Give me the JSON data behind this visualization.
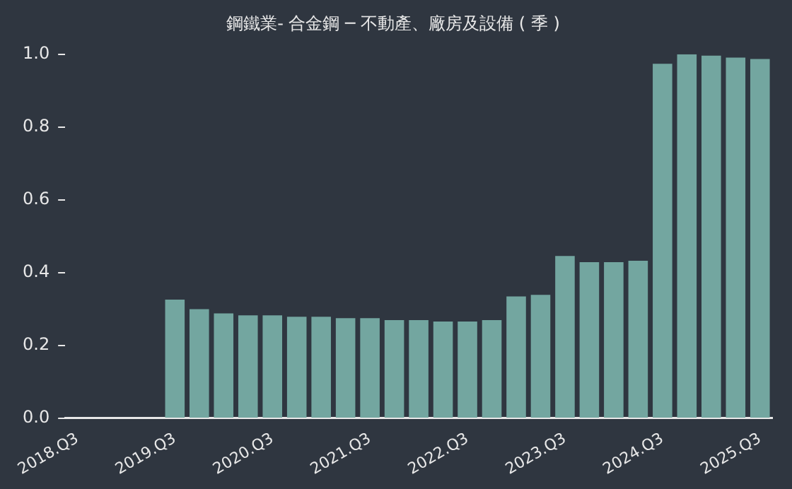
{
  "chart_data": {
    "type": "bar",
    "title": "鋼鐵業- 合金鋼 ─ 不動產、廠房及設備 ( 季 )",
    "categories": [
      "2018.Q3",
      null,
      null,
      null,
      "2019.Q3",
      null,
      null,
      null,
      "2020.Q3",
      null,
      null,
      null,
      "2021.Q3",
      null,
      null,
      null,
      "2022.Q3",
      null,
      null,
      null,
      "2023.Q3",
      null,
      null,
      null,
      "2024.Q3",
      null,
      null,
      null,
      "2025.Q3"
    ],
    "values": [
      null,
      null,
      null,
      null,
      0.326,
      0.3,
      0.288,
      0.283,
      0.283,
      0.279,
      0.279,
      0.275,
      0.275,
      0.27,
      0.27,
      0.266,
      0.266,
      0.27,
      0.335,
      0.339,
      0.446,
      0.429,
      0.429,
      0.433,
      0.974,
      1.0,
      0.996,
      0.991,
      0.987
    ],
    "color": "#73a6a0",
    "ylim": [
      0,
      1.0
    ],
    "yticks": [
      {
        "value": 0,
        "label": "0.0"
      },
      {
        "value": 0.2,
        "label": "0.2"
      },
      {
        "value": 0.4,
        "label": "0.4"
      },
      {
        "value": 0.6,
        "label": "0.6"
      },
      {
        "value": 0.8,
        "label": "0.8"
      },
      {
        "value": 1.0,
        "label": "1.0"
      }
    ],
    "grid": false,
    "legend": false
  }
}
